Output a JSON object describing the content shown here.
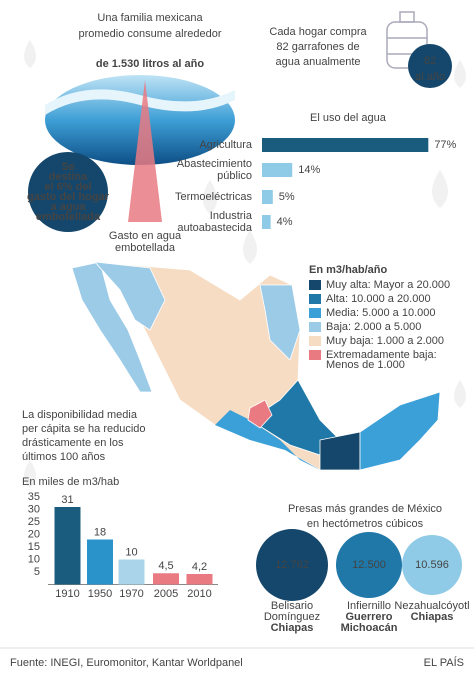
{
  "header": {
    "lines": [
      "Una familia mexicana",
      "promedio consume alrededor"
    ],
    "highlight": "de 1.530 litros al año"
  },
  "bottled": {
    "circle": [
      "Se",
      "destina",
      "el 6% del",
      "gasto del hogar",
      "a agua",
      "embotellada"
    ],
    "caption": [
      "Gasto en agua",
      "embotellada"
    ]
  },
  "jugs": {
    "lines": [
      "Cada hogar compra",
      "82 garrafones de",
      "agua anualmente"
    ],
    "badge": "82",
    "badge_unit": "al año"
  },
  "map": {
    "legend_title": "En m3/hab/año",
    "legend": [
      {
        "lines": [
          "Muy alta: Mayor a 20.000"
        ],
        "color": "#14476b"
      },
      {
        "lines": [
          "Alta: 10.000 a 20.000"
        ],
        "color": "#1f78a8"
      },
      {
        "lines": [
          "Media: 5.000 a 10.000"
        ],
        "color": "#3ca0d8"
      },
      {
        "lines": [
          "Baja: 2.000 a 5.000"
        ],
        "color": "#9ccbe8"
      },
      {
        "lines": [
          "Muy baja: 1.000 a 2.000"
        ],
        "color": "#f6dcc2"
      },
      {
        "lines": [
          "Extremadamente baja:",
          "Menos de 1.000"
        ],
        "color": "#e97a82"
      }
    ]
  },
  "chart_data": [
    {
      "type": "hbar",
      "title": "El uso del agua",
      "categories": [
        "Agricultura",
        "Abastecimiento público",
        "Termoeléctricas",
        "Industria autoabastecida"
      ],
      "values": [
        77,
        14,
        5,
        4
      ],
      "value_labels": [
        "77%",
        "14%",
        "5%",
        "4%"
      ],
      "colors": [
        "#1a5c7e",
        "#8fcbe6",
        "#8fcbe6",
        "#8fcbe6"
      ]
    },
    {
      "type": "bar",
      "title": [
        "La disponibilidad media",
        "per cápita se ha reducido",
        "drásticamente en los",
        "últimos 100 años"
      ],
      "subtitle": "En miles de m3/hab",
      "categories": [
        "1910",
        "1950",
        "1970",
        "2005",
        "2010"
      ],
      "values": [
        31,
        18,
        10,
        4.5,
        4.2
      ],
      "value_labels": [
        "31",
        "18",
        "10",
        "4,5",
        "4,2"
      ],
      "colors": [
        "#1a5c7e",
        "#2a93c9",
        "#a9d4ea",
        "#e97a82",
        "#e97a82"
      ],
      "ylim": [
        0,
        35
      ],
      "yticks": [
        5,
        10,
        15,
        20,
        25,
        30,
        35
      ]
    }
  ],
  "dams": {
    "title": "Presas más grandes de México",
    "subtitle": "en hectómetros cúbicos",
    "items": [
      {
        "value": "12.762",
        "name": [
          "Belisario",
          "Domínguez"
        ],
        "state": [
          "Chiapas"
        ]
      },
      {
        "value": "12.500",
        "name": [
          "Infiernillo"
        ],
        "state": [
          "Guerrero",
          "Michoacán"
        ]
      },
      {
        "value": "10.596",
        "name": [
          "Nezahualcóyotl"
        ],
        "state": [
          "Chiapas"
        ]
      }
    ]
  },
  "footer": {
    "source": "Fuente: INEGI, Euromonitor, Kantar Worldpanel",
    "brand": "EL PAÍS"
  }
}
